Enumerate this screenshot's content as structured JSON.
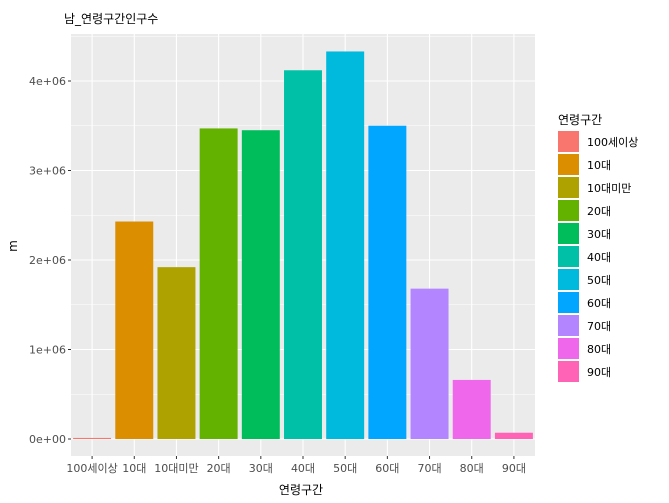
{
  "chart_data": {
    "type": "bar",
    "title": "남_연령구간인구수",
    "xlabel": "연령구간",
    "ylabel": "m",
    "categories": [
      "100세이상",
      "10대",
      "10대미만",
      "20대",
      "30대",
      "40대",
      "50대",
      "60대",
      "70대",
      "80대",
      "90대"
    ],
    "values": [
      12000,
      2430000,
      1920000,
      3470000,
      3450000,
      4120000,
      4330000,
      3500000,
      1680000,
      660000,
      70000
    ],
    "colors": [
      "#F8766D",
      "#DB8E00",
      "#AEA200",
      "#64B200",
      "#00BD5C",
      "#00C1A7",
      "#00BADE",
      "#00A6FF",
      "#B385FF",
      "#EF67EB",
      "#FF63B6"
    ],
    "ylim": [
      0,
      4500000
    ],
    "yticks": [
      0,
      1000000,
      2000000,
      3000000,
      4000000
    ],
    "ytick_labels": [
      "0e+00",
      "1e+06",
      "2e+06",
      "3e+06",
      "4e+06"
    ],
    "grid": true,
    "legend": {
      "title": "연령구간",
      "position": "right",
      "entries": [
        "100세이상",
        "10대",
        "10대미만",
        "20대",
        "30대",
        "40대",
        "50대",
        "60대",
        "70대",
        "80대",
        "90대"
      ]
    }
  }
}
